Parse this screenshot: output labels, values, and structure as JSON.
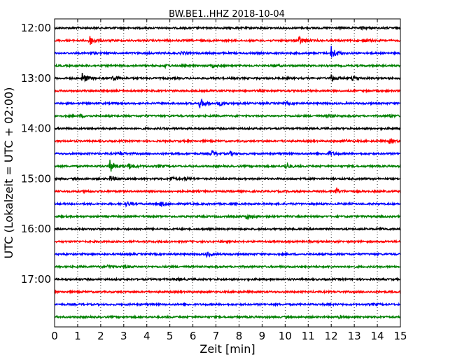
{
  "chart_data": {
    "type": "line",
    "title": "BW.BE1..HHZ 2018-10-04",
    "xlabel": "Zeit  [min]",
    "ylabel": "UTC (Lokalzeit = UTC + 02:00)",
    "xlim": [
      0,
      15
    ],
    "x_ticks": [
      "0",
      "1",
      "2",
      "3",
      "4",
      "5",
      "6",
      "7",
      "8",
      "9",
      "10",
      "11",
      "12",
      "13",
      "14",
      "15"
    ],
    "y_ticks": [
      "12:00",
      "13:00",
      "14:00",
      "15:00",
      "16:00",
      "17:00"
    ],
    "trace_interval_min": 15,
    "grid": "dotted vertical at each minute",
    "colors": [
      "#000000",
      "#ff0000",
      "#0000ff",
      "#008000"
    ],
    "series": [
      {
        "start": "12:00",
        "events": [
          {
            "t": 13.3,
            "amp": 0.5
          }
        ]
      },
      {
        "start": "12:15",
        "events": [
          {
            "t": 1.5,
            "amp": 2.2
          },
          {
            "t": 10.6,
            "amp": 1.6
          },
          {
            "t": 13.4,
            "amp": 0.6
          }
        ]
      },
      {
        "start": "12:30",
        "events": [
          {
            "t": 1.5,
            "amp": 0.6
          },
          {
            "t": 5.5,
            "amp": 0.5
          },
          {
            "t": 12.0,
            "amp": 2.8
          }
        ]
      },
      {
        "start": "12:45",
        "events": [
          {
            "t": 4.8,
            "amp": 0.5
          },
          {
            "t": 6.8,
            "amp": 0.7
          },
          {
            "t": 9.5,
            "amp": 0.5
          }
        ]
      },
      {
        "start": "13:00",
        "events": [
          {
            "t": 1.2,
            "amp": 2.2
          },
          {
            "t": 2.5,
            "amp": 1.2
          },
          {
            "t": 12.0,
            "amp": 1.5
          },
          {
            "t": 12.9,
            "amp": 1.0
          }
        ]
      },
      {
        "start": "13:15",
        "events": []
      },
      {
        "start": "13:30",
        "events": [
          {
            "t": 6.3,
            "amp": 2.0
          },
          {
            "t": 7.1,
            "amp": 1.0
          },
          {
            "t": 10.0,
            "amp": 0.4
          }
        ]
      },
      {
        "start": "13:45",
        "events": [
          {
            "t": 1.1,
            "amp": 0.6
          },
          {
            "t": 11.8,
            "amp": 0.9
          },
          {
            "t": 14.5,
            "amp": 0.5
          }
        ]
      },
      {
        "start": "14:00",
        "events": []
      },
      {
        "start": "14:15",
        "events": [
          {
            "t": 12.6,
            "amp": 0.5
          },
          {
            "t": 14.5,
            "amp": 0.9
          }
        ]
      },
      {
        "start": "14:30",
        "events": [
          {
            "t": 2.8,
            "amp": 1.0
          },
          {
            "t": 6.8,
            "amp": 1.3
          },
          {
            "t": 7.6,
            "amp": 0.8
          },
          {
            "t": 11.9,
            "amp": 1.1
          }
        ]
      },
      {
        "start": "14:45",
        "events": [
          {
            "t": 2.4,
            "amp": 2.5
          },
          {
            "t": 3.2,
            "amp": 1.3
          },
          {
            "t": 4.5,
            "amp": 0.5
          },
          {
            "t": 10.0,
            "amp": 1.5
          }
        ]
      },
      {
        "start": "15:00",
        "events": [
          {
            "t": 2.4,
            "amp": 1.2
          },
          {
            "t": 5.0,
            "amp": 0.9
          },
          {
            "t": 5.6,
            "amp": 0.5
          }
        ]
      },
      {
        "start": "15:15",
        "events": [
          {
            "t": 1.3,
            "amp": 0.5
          },
          {
            "t": 12.2,
            "amp": 1.1
          }
        ]
      },
      {
        "start": "15:30",
        "events": [
          {
            "t": 3.1,
            "amp": 0.8
          },
          {
            "t": 4.6,
            "amp": 1.0
          }
        ]
      },
      {
        "start": "15:45",
        "events": [
          {
            "t": 8.3,
            "amp": 1.2
          }
        ]
      },
      {
        "start": "16:00",
        "events": [
          {
            "t": 14.1,
            "amp": 0.4
          }
        ]
      },
      {
        "start": "16:15",
        "events": []
      },
      {
        "start": "16:30",
        "events": [
          {
            "t": 6.6,
            "amp": 1.0
          }
        ]
      },
      {
        "start": "16:45",
        "events": [
          {
            "t": 2.3,
            "amp": 0.7
          },
          {
            "t": 3.0,
            "amp": 0.6
          }
        ]
      },
      {
        "start": "17:00",
        "events": [
          {
            "t": 5.3,
            "amp": 0.3
          }
        ]
      },
      {
        "start": "17:15",
        "events": []
      },
      {
        "start": "17:30",
        "events": [
          {
            "t": 13.8,
            "amp": 0.4
          }
        ]
      },
      {
        "start": "17:45",
        "events": [
          {
            "t": 12.3,
            "amp": 0.4
          }
        ]
      }
    ]
  }
}
